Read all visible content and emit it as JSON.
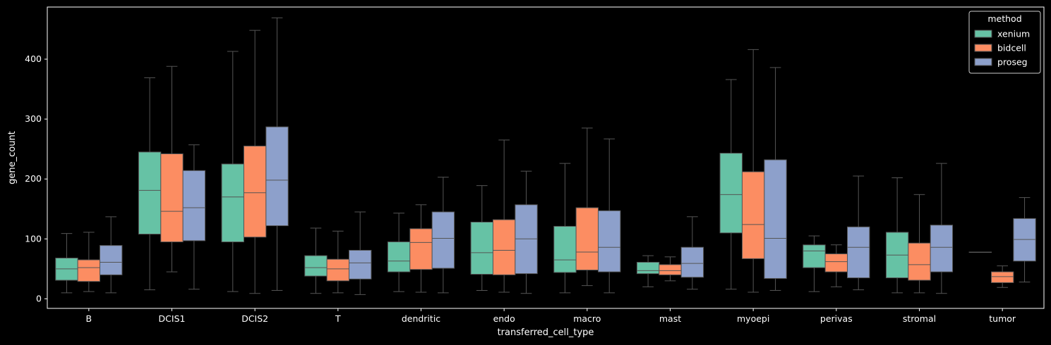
{
  "chart_data": {
    "type": "box",
    "xlabel": "transferred_cell_type",
    "ylabel": "gene_count",
    "ylim": [
      -16,
      487
    ],
    "yticks": [
      0,
      100,
      200,
      300,
      400
    ],
    "grid": false,
    "legend": {
      "title": "method",
      "position": "top-right"
    },
    "categories": [
      "B",
      "DCIS1",
      "DCIS2",
      "T",
      "dendritic",
      "endo",
      "macro",
      "mast",
      "myoepi",
      "perivas",
      "stromal",
      "tumor"
    ],
    "series": [
      {
        "name": "xenium",
        "color": "#66c2a5",
        "boxes": [
          {
            "whislo": 10,
            "q1": 31,
            "med": 50,
            "q3": 68,
            "whishi": 109
          },
          {
            "whislo": 15,
            "q1": 108,
            "med": 181,
            "q3": 245,
            "whishi": 369
          },
          {
            "whislo": 12,
            "q1": 95,
            "med": 170,
            "q3": 225,
            "whishi": 413
          },
          {
            "whislo": 9,
            "q1": 38,
            "med": 52,
            "q3": 72,
            "whishi": 118
          },
          {
            "whislo": 12,
            "q1": 45,
            "med": 63,
            "q3": 95,
            "whishi": 143
          },
          {
            "whislo": 14,
            "q1": 41,
            "med": 77,
            "q3": 128,
            "whishi": 189
          },
          {
            "whislo": 10,
            "q1": 44,
            "med": 65,
            "q3": 121,
            "whishi": 226
          },
          {
            "whislo": 20,
            "q1": 42,
            "med": 47,
            "q3": 61,
            "whishi": 72
          },
          {
            "whislo": 16,
            "q1": 110,
            "med": 174,
            "q3": 243,
            "whishi": 366
          },
          {
            "whislo": 12,
            "q1": 52,
            "med": 80,
            "q3": 90,
            "whishi": 105
          },
          {
            "whislo": 10,
            "q1": 35,
            "med": 73,
            "q3": 111,
            "whishi": 202
          },
          {
            "whislo": 78,
            "q1": 78,
            "med": 78,
            "q3": 78,
            "whishi": 78
          }
        ]
      },
      {
        "name": "bidcell",
        "color": "#fc8d62",
        "boxes": [
          {
            "whislo": 12,
            "q1": 29,
            "med": 52,
            "q3": 65,
            "whishi": 111
          },
          {
            "whislo": 45,
            "q1": 95,
            "med": 146,
            "q3": 242,
            "whishi": 388
          },
          {
            "whislo": 9,
            "q1": 103,
            "med": 177,
            "q3": 255,
            "whishi": 448
          },
          {
            "whislo": 10,
            "q1": 30,
            "med": 50,
            "q3": 66,
            "whishi": 113
          },
          {
            "whislo": 11,
            "q1": 49,
            "med": 94,
            "q3": 117,
            "whishi": 157
          },
          {
            "whislo": 11,
            "q1": 40,
            "med": 81,
            "q3": 132,
            "whishi": 265
          },
          {
            "whislo": 22,
            "q1": 48,
            "med": 78,
            "q3": 152,
            "whishi": 285
          },
          {
            "whislo": 30,
            "q1": 40,
            "med": 47,
            "q3": 57,
            "whishi": 70
          },
          {
            "whislo": 11,
            "q1": 67,
            "med": 124,
            "q3": 212,
            "whishi": 416
          },
          {
            "whislo": 20,
            "q1": 45,
            "med": 62,
            "q3": 75,
            "whishi": 90
          },
          {
            "whislo": 10,
            "q1": 31,
            "med": 57,
            "q3": 93,
            "whishi": 174
          },
          {
            "whislo": 19,
            "q1": 27,
            "med": 37,
            "q3": 45,
            "whishi": 55
          }
        ]
      },
      {
        "name": "proseg",
        "color": "#8da0cb",
        "boxes": [
          {
            "whislo": 10,
            "q1": 40,
            "med": 61,
            "q3": 89,
            "whishi": 137
          },
          {
            "whislo": 16,
            "q1": 97,
            "med": 152,
            "q3": 214,
            "whishi": 257
          },
          {
            "whislo": 14,
            "q1": 122,
            "med": 198,
            "q3": 287,
            "whishi": 469
          },
          {
            "whislo": 7,
            "q1": 33,
            "med": 60,
            "q3": 81,
            "whishi": 145
          },
          {
            "whislo": 10,
            "q1": 51,
            "med": 101,
            "q3": 145,
            "whishi": 203
          },
          {
            "whislo": 9,
            "q1": 42,
            "med": 100,
            "q3": 157,
            "whishi": 213
          },
          {
            "whislo": 10,
            "q1": 45,
            "med": 86,
            "q3": 147,
            "whishi": 267
          },
          {
            "whislo": 16,
            "q1": 36,
            "med": 59,
            "q3": 86,
            "whishi": 137
          },
          {
            "whislo": 14,
            "q1": 34,
            "med": 101,
            "q3": 232,
            "whishi": 386
          },
          {
            "whislo": 15,
            "q1": 35,
            "med": 86,
            "q3": 120,
            "whishi": 205
          },
          {
            "whislo": 9,
            "q1": 45,
            "med": 86,
            "q3": 123,
            "whishi": 226
          },
          {
            "whislo": 28,
            "q1": 63,
            "med": 99,
            "q3": 134,
            "whishi": 169
          }
        ]
      }
    ]
  }
}
